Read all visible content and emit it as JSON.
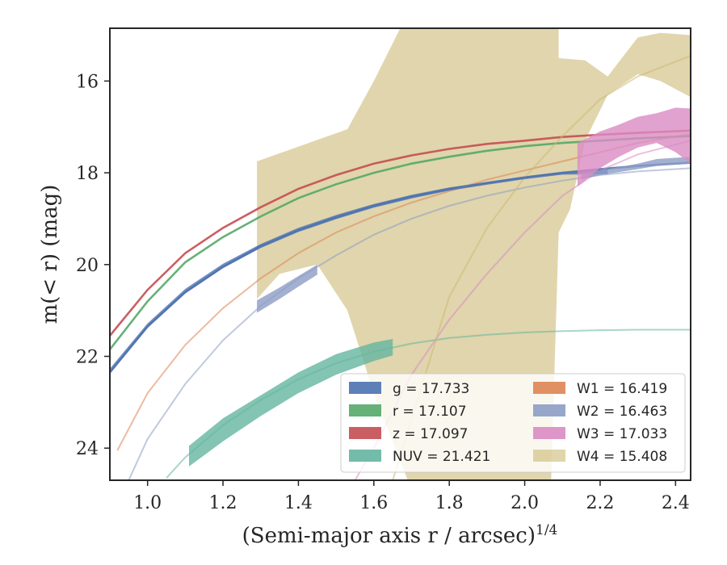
{
  "chart_data": {
    "type": "line",
    "title": "",
    "xlabel": "(Semi-major axis r / arcsec)",
    "xlabel_italic": "r",
    "xlabel_exponent": "1/4",
    "ylabel": "m(< r) (mag)",
    "xlim": [
      0.9,
      2.44
    ],
    "ylim": [
      24.7,
      14.85
    ],
    "y_inverted": true,
    "x_ticks": [
      "1.0",
      "1.2",
      "1.4",
      "1.6",
      "1.8",
      "2.0",
      "2.2",
      "2.4"
    ],
    "y_ticks": [
      "16",
      "18",
      "20",
      "22",
      "24"
    ],
    "grid": false,
    "legend_position": "lower-right",
    "legend_columns": 2,
    "series": [
      {
        "name": "g = 17.733",
        "band": "g",
        "value": "17.733",
        "color": "#4c72b0",
        "model": {
          "x": [
            0.9,
            1.0,
            1.1,
            1.2,
            1.3,
            1.4,
            1.5,
            1.6,
            1.7,
            1.8,
            1.9,
            2.0,
            2.1,
            2.2,
            2.3,
            2.44
          ],
          "y": [
            22.35,
            21.35,
            20.6,
            20.05,
            19.6,
            19.25,
            18.97,
            18.72,
            18.52,
            18.35,
            18.22,
            18.1,
            18.0,
            17.92,
            17.85,
            17.78
          ]
        },
        "band_data": {
          "x": [
            0.9,
            1.0,
            1.1,
            1.2,
            1.3,
            1.4,
            1.5,
            1.6,
            1.7,
            1.8,
            1.9,
            2.0,
            2.1,
            2.22
          ],
          "lo": [
            22.27,
            21.28,
            20.53,
            19.98,
            19.55,
            19.2,
            18.92,
            18.68,
            18.48,
            18.32,
            18.2,
            18.08,
            17.98,
            17.93
          ],
          "hi": [
            22.38,
            21.38,
            20.63,
            20.08,
            19.64,
            19.29,
            19.01,
            18.76,
            18.56,
            18.39,
            18.26,
            18.14,
            18.04,
            18.03
          ]
        }
      },
      {
        "name": "r = 17.107",
        "band": "r",
        "value": "17.107",
        "color": "#55a868",
        "model": {
          "x": [
            0.9,
            1.0,
            1.1,
            1.2,
            1.3,
            1.4,
            1.5,
            1.6,
            1.7,
            1.8,
            1.9,
            2.0,
            2.1,
            2.2,
            2.3,
            2.44
          ],
          "y": [
            21.85,
            20.8,
            19.95,
            19.4,
            18.95,
            18.55,
            18.25,
            18.0,
            17.8,
            17.65,
            17.52,
            17.42,
            17.35,
            17.3,
            17.25,
            17.2
          ]
        }
      },
      {
        "name": "z = 17.097",
        "band": "z",
        "value": "17.097",
        "color": "#c44e52",
        "model": {
          "x": [
            0.9,
            1.0,
            1.1,
            1.2,
            1.3,
            1.4,
            1.5,
            1.6,
            1.7,
            1.8,
            1.9,
            2.0,
            2.1,
            2.2,
            2.3,
            2.44
          ],
          "y": [
            21.55,
            20.55,
            19.75,
            19.2,
            18.75,
            18.35,
            18.05,
            17.8,
            17.62,
            17.48,
            17.37,
            17.3,
            17.22,
            17.17,
            17.13,
            17.08
          ]
        }
      },
      {
        "name": "NUV = 21.421",
        "band": "NUV",
        "value": "21.421",
        "color": "#64b5a0",
        "model": {
          "x": [
            1.05,
            1.1,
            1.2,
            1.3,
            1.4,
            1.5,
            1.6,
            1.7,
            1.8,
            1.9,
            2.0,
            2.1,
            2.2,
            2.3,
            2.44
          ],
          "y": [
            24.65,
            24.2,
            23.5,
            22.95,
            22.5,
            22.15,
            21.9,
            21.72,
            21.6,
            21.53,
            21.48,
            21.45,
            21.43,
            21.42,
            21.42
          ]
        },
        "band_data": {
          "x": [
            1.11,
            1.2,
            1.3,
            1.4,
            1.5,
            1.6,
            1.65
          ],
          "lo": [
            23.95,
            23.35,
            22.85,
            22.35,
            21.95,
            21.7,
            21.62
          ],
          "hi": [
            24.4,
            23.85,
            23.3,
            22.8,
            22.4,
            22.1,
            21.98
          ]
        }
      },
      {
        "name": "W1 = 16.419",
        "band": "W1",
        "value": "16.419",
        "color": "#dd8452",
        "model": {
          "x": [
            0.92,
            1.0,
            1.1,
            1.2,
            1.3,
            1.4,
            1.5,
            1.6,
            1.7,
            1.8,
            1.9,
            2.0,
            2.1,
            2.2,
            2.3,
            2.44
          ],
          "y": [
            24.05,
            22.8,
            21.75,
            20.95,
            20.3,
            19.75,
            19.3,
            18.95,
            18.65,
            18.4,
            18.15,
            17.95,
            17.75,
            17.55,
            17.35,
            17.15
          ]
        }
      },
      {
        "name": "W2 = 16.463",
        "band": "W2",
        "value": "16.463",
        "color": "#8c9cc4",
        "model": {
          "x": [
            0.95,
            1.0,
            1.1,
            1.2,
            1.3,
            1.4,
            1.5,
            1.6,
            1.7,
            1.8,
            1.9,
            2.0,
            2.1,
            2.2,
            2.3,
            2.44
          ],
          "y": [
            24.7,
            23.8,
            22.6,
            21.65,
            20.9,
            20.3,
            19.8,
            19.35,
            19.0,
            18.72,
            18.5,
            18.32,
            18.17,
            18.05,
            17.97,
            17.9
          ]
        },
        "band_data": {
          "x": [
            1.29,
            1.35,
            1.4,
            1.45
          ],
          "lo": [
            20.78,
            20.5,
            20.25,
            20.0
          ],
          "hi": [
            21.05,
            20.75,
            20.48,
            20.22
          ],
          "x2": [
            2.15,
            2.2,
            2.3,
            2.35,
            2.44
          ],
          "lo2": [
            18.0,
            17.95,
            17.8,
            17.7,
            17.65
          ],
          "hi2": [
            18.15,
            18.05,
            17.92,
            17.85,
            17.8
          ]
        }
      },
      {
        "name": "W3 = 17.033",
        "band": "W3",
        "value": "17.033",
        "color": "#da8bc3",
        "model": {
          "x": [
            1.55,
            1.6,
            1.7,
            1.8,
            1.9,
            2.0,
            2.1,
            2.2,
            2.3,
            2.44
          ],
          "y": [
            24.7,
            24.0,
            22.4,
            21.2,
            20.2,
            19.3,
            18.5,
            17.95,
            17.6,
            17.3
          ]
        },
        "band_data": {
          "x": [
            2.14,
            2.2,
            2.25,
            2.3,
            2.35,
            2.4,
            2.44
          ],
          "lo": [
            17.35,
            17.1,
            16.95,
            16.78,
            16.7,
            16.58,
            16.6
          ],
          "hi": [
            18.3,
            17.9,
            17.65,
            17.45,
            17.35,
            17.55,
            17.8
          ]
        }
      },
      {
        "name": "W4 = 15.408",
        "band": "W4",
        "value": "15.408",
        "color": "#ccb974",
        "model": {
          "x": [
            1.65,
            1.8,
            1.9,
            2.0,
            2.1,
            2.2,
            2.3,
            2.44
          ],
          "y": [
            24.7,
            20.7,
            19.2,
            18.1,
            17.2,
            16.4,
            15.9,
            15.45
          ]
        },
        "band_data": {
          "polygon": [
            [
              1.29,
              17.75
            ],
            [
              1.53,
              17.05
            ],
            [
              1.6,
              16.0
            ],
            [
              1.67,
              14.85
            ],
            [
              2.09,
              14.85
            ],
            [
              2.09,
              15.5
            ],
            [
              2.16,
              15.55
            ],
            [
              2.22,
              15.9
            ],
            [
              2.3,
              15.05
            ],
            [
              2.36,
              14.95
            ],
            [
              2.44,
              15.0
            ],
            [
              2.44,
              16.35
            ],
            [
              2.36,
              16.0
            ],
            [
              2.3,
              15.85
            ],
            [
              2.22,
              16.3
            ],
            [
              2.16,
              17.3
            ],
            [
              2.12,
              18.8
            ],
            [
              2.09,
              19.3
            ],
            [
              2.07,
              24.7
            ],
            [
              1.8,
              24.7
            ],
            [
              1.69,
              24.7
            ],
            [
              1.6,
              22.8
            ],
            [
              1.53,
              21.0
            ],
            [
              1.45,
              20.0
            ],
            [
              1.35,
              20.2
            ],
            [
              1.29,
              20.75
            ]
          ]
        }
      }
    ]
  }
}
